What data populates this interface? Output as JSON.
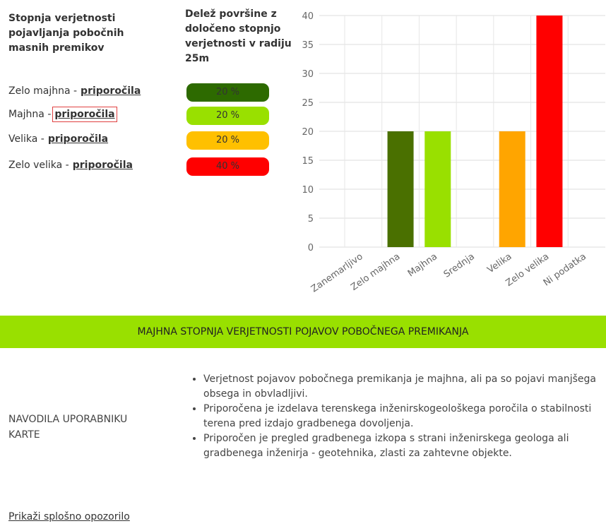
{
  "legend_table": {
    "header": [
      "Stopnja verjetnosti pojavljanja pobočnih masnih premikov",
      "Delež površine z določeno stopnjo verjetnosti v radiju 25m"
    ],
    "rows": [
      {
        "label": "Zelo majhna -",
        "link": "priporočila",
        "share": "20 %",
        "color": "#2d6a00"
      },
      {
        "label": "Majhna -",
        "link": "priporočila",
        "share": "20 %",
        "color": "#99e000"
      },
      {
        "label": "Velika -",
        "link": "priporočila",
        "share": "20 %",
        "color": "#ffc000"
      },
      {
        "label": "Zelo velika -",
        "link": "priporočila",
        "share": "40 %",
        "color": "#ff0000"
      }
    ]
  },
  "chart_data": {
    "type": "bar",
    "categories": [
      "Zanemarljivo",
      "Zelo majhna",
      "Majhna",
      "Srednja",
      "Velika",
      "Zelo velika",
      "Ni podatka"
    ],
    "values": [
      0,
      20,
      20,
      0,
      20,
      40,
      0
    ],
    "colors": [
      "#888888",
      "#4a7000",
      "#99e000",
      "#ffff00",
      "#ffa500",
      "#ff0000",
      "#cccccc"
    ],
    "ylim": [
      0,
      40
    ],
    "yticks": [
      0,
      5,
      10,
      15,
      20,
      25,
      30,
      35,
      40
    ],
    "grid": true
  },
  "banner": {
    "text": "MAJHNA STOPNJA VERJETNOSTI POJAVOV POBOČNEGA PREMIKANJA",
    "color": "#99e000"
  },
  "instructions": {
    "label": "NAVODILA UPORABNIKU KARTE",
    "items": [
      "Verjetnost pojavov pobočnega premikanja je majhna, ali pa so pojavi manjšega obsega in obvladljivi.",
      "Priporočena je izdelava terenskega inženirskogeološkega poročila o stabilnosti terena pred izdajo gradbenega dovoljenja.",
      "Priporočen je pregled gradbenega izkopa s strani inženirskega geologa ali gradbenega inženirja - geotehnika, zlasti za zahtevne objekte."
    ]
  },
  "footer": {
    "link": "Prikaži splošno opozorilo"
  }
}
